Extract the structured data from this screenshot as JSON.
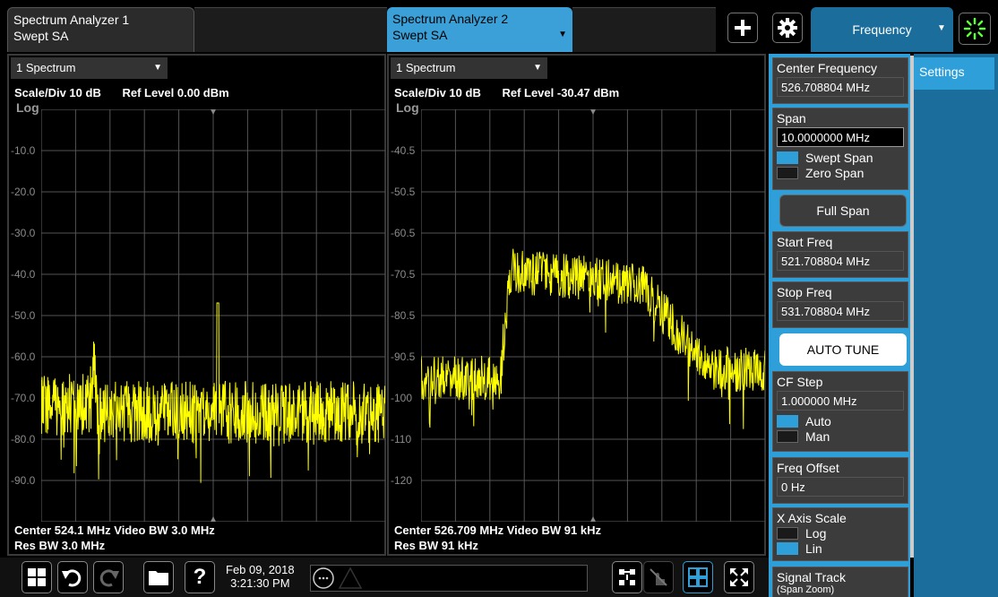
{
  "tabs": [
    {
      "line1": "Spectrum Analyzer 1",
      "line2": "Swept SA"
    },
    {
      "line1": "Spectrum Analyzer 2",
      "line2": "Swept SA"
    }
  ],
  "topbar": {
    "menu_tab_label": "Frequency",
    "plus_icon": "plus-icon",
    "gear_icon": "gear-icon",
    "busy_icon": "busy-spinner-icon"
  },
  "panels": [
    {
      "header": "1 Spectrum",
      "scale_div": "Scale/Div 10 dB",
      "ref_level": "Ref Level 0.00 dBm",
      "log": "Log",
      "ylabels": [
        "-10.0",
        "-20.0",
        "-30.0",
        "-40.0",
        "-50.0",
        "-60.0",
        "-70.0",
        "-80.0",
        "-90.0"
      ],
      "footer_line1": "Center 524.1 MHz   Video BW 3.0 MHz",
      "footer_line2": "Res BW 3.0 MHz"
    },
    {
      "header": "1 Spectrum",
      "scale_div": "Scale/Div 10 dB",
      "ref_level": "Ref Level -30.47 dBm",
      "log": "Log",
      "ylabels": [
        "-40.5",
        "-50.5",
        "-60.5",
        "-70.5",
        "-80.5",
        "-90.5",
        "-100",
        "-110",
        "-120"
      ],
      "footer_line1": "Center 526.709 MHz Video BW 91 kHz",
      "footer_line2": "Res BW 91 kHz"
    }
  ],
  "menu": {
    "settings_tab": "Settings",
    "center_freq": {
      "label": "Center Frequency",
      "value": "526.708804 MHz"
    },
    "span": {
      "label": "Span",
      "value": "10.0000000 MHz",
      "opt1": "Swept Span",
      "opt2": "Zero Span"
    },
    "full_span": "Full Span",
    "start_freq": {
      "label": "Start Freq",
      "value": "521.708804 MHz"
    },
    "stop_freq": {
      "label": "Stop Freq",
      "value": "531.708804 MHz"
    },
    "auto_tune": "AUTO TUNE",
    "cf_step": {
      "label": "CF Step",
      "value": "1.000000 MHz",
      "opt1": "Auto",
      "opt2": "Man"
    },
    "freq_offset": {
      "label": "Freq Offset",
      "value": "0 Hz"
    },
    "x_axis_scale": {
      "label": "X Axis Scale",
      "opt1": "Log",
      "opt2": "Lin"
    },
    "signal_track": {
      "label": "Signal Track",
      "sub": "(Span Zoom)"
    }
  },
  "bottombar": {
    "date": "Feb 09, 2018",
    "time": "3:21:30 PM"
  },
  "colors": {
    "trace": "#ffff00",
    "accent": "#2e9fd8",
    "dark_accent": "#1b6e9b"
  }
}
